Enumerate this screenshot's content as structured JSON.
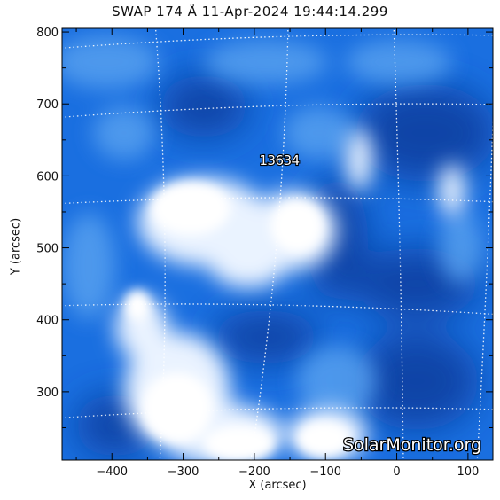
{
  "title": "SWAP 174 Å 11-Apr-2024 19:44:14.299",
  "xlabel": "X (arcsec)",
  "ylabel": "Y (arcsec)",
  "annotation": "13634",
  "watermark": "SolarMonitor.org",
  "axes": {
    "xlim": [
      -470,
      135
    ],
    "ylim": [
      205,
      805
    ],
    "x_ticks": [
      -400,
      -300,
      -200,
      -100,
      0,
      100
    ],
    "y_ticks": [
      300,
      400,
      500,
      600,
      700,
      800
    ],
    "x_tick_labels": [
      "−400",
      "−300",
      "−200",
      "−100",
      "0",
      "100"
    ],
    "y_tick_labels": [
      "300",
      "400",
      "500",
      "600",
      "700",
      "800"
    ]
  },
  "annotation_position": {
    "x": -165,
    "y": 615
  },
  "colors": {
    "background": "#1a6fe0",
    "deep": "#0a3d9e",
    "bright": "#eaf3ff",
    "grid": "#ffffff"
  },
  "grid": true
}
